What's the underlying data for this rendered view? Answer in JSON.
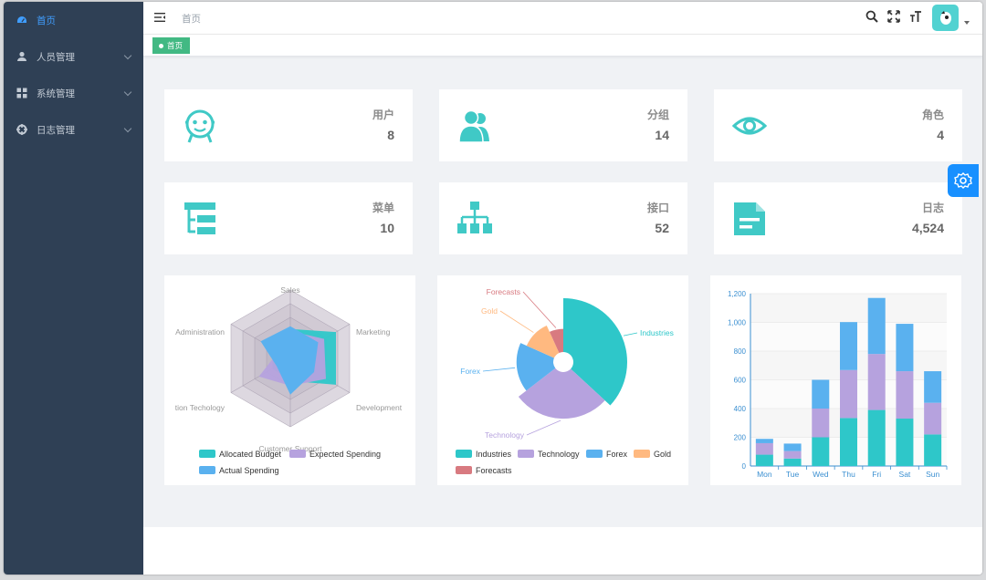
{
  "sidebar": {
    "items": [
      {
        "label": "首页",
        "active": true
      },
      {
        "label": "人员管理"
      },
      {
        "label": "系统管理"
      },
      {
        "label": "日志管理"
      }
    ]
  },
  "navbar": {
    "breadcrumb": "首页"
  },
  "tags": [
    {
      "label": "首页"
    }
  ],
  "cards": [
    {
      "label": "用户",
      "value": "8",
      "icon": "robot-face-icon"
    },
    {
      "label": "分组",
      "value": "14",
      "icon": "people-icon"
    },
    {
      "label": "角色",
      "value": "4",
      "icon": "eye-icon"
    },
    {
      "label": "菜单",
      "value": "10",
      "icon": "tree-list-icon"
    },
    {
      "label": "接口",
      "value": "52",
      "icon": "sitemap-icon"
    },
    {
      "label": "日志",
      "value": "4,524",
      "icon": "document-icon"
    }
  ],
  "colors": {
    "accent": "#40c9c6",
    "sidebar": "#2f4055",
    "active": "#409eff"
  },
  "chart_data": [
    {
      "type": "radar",
      "indicators": [
        "Sales",
        "Marketing",
        "Development",
        "Customer Support",
        "Information Techology",
        "Administration"
      ],
      "legend": [
        "Allocated Budget",
        "Expected Spending",
        "Actual Spending"
      ],
      "series": [
        {
          "name": "Allocated Budget",
          "values": [
            0.43,
            0.77,
            0.77,
            0.33,
            0.3,
            0.3
          ]
        },
        {
          "name": "Expected Spending",
          "values": [
            0.4,
            0.57,
            0.6,
            0.4,
            0.53,
            0.2
          ]
        },
        {
          "name": "Actual Spending",
          "values": [
            0.47,
            0.47,
            0.4,
            0.53,
            0.23,
            0.5
          ]
        }
      ]
    },
    {
      "type": "pie",
      "legend": [
        "Industries",
        "Technology",
        "Forex",
        "Gold",
        "Forecasts"
      ],
      "series": [
        {
          "name": "Industries",
          "value": 320
        },
        {
          "name": "Technology",
          "value": 240
        },
        {
          "name": "Forex",
          "value": 149
        },
        {
          "name": "Gold",
          "value": 100
        },
        {
          "name": "Forecasts",
          "value": 59
        }
      ]
    },
    {
      "type": "bar",
      "categories": [
        "Mon",
        "Tue",
        "Wed",
        "Thu",
        "Fri",
        "Sat",
        "Sun"
      ],
      "ylim": [
        0,
        1200
      ],
      "yticks": [
        "0",
        "200",
        "400",
        "600",
        "800",
        "1,000",
        "1,200"
      ],
      "series": [
        {
          "values": [
            79,
            52,
            200,
            334,
            390,
            330,
            220
          ]
        },
        {
          "values": [
            80,
            52,
            200,
            334,
            390,
            330,
            220
          ]
        },
        {
          "values": [
            30,
            52,
            200,
            334,
            390,
            330,
            220
          ]
        }
      ]
    }
  ]
}
